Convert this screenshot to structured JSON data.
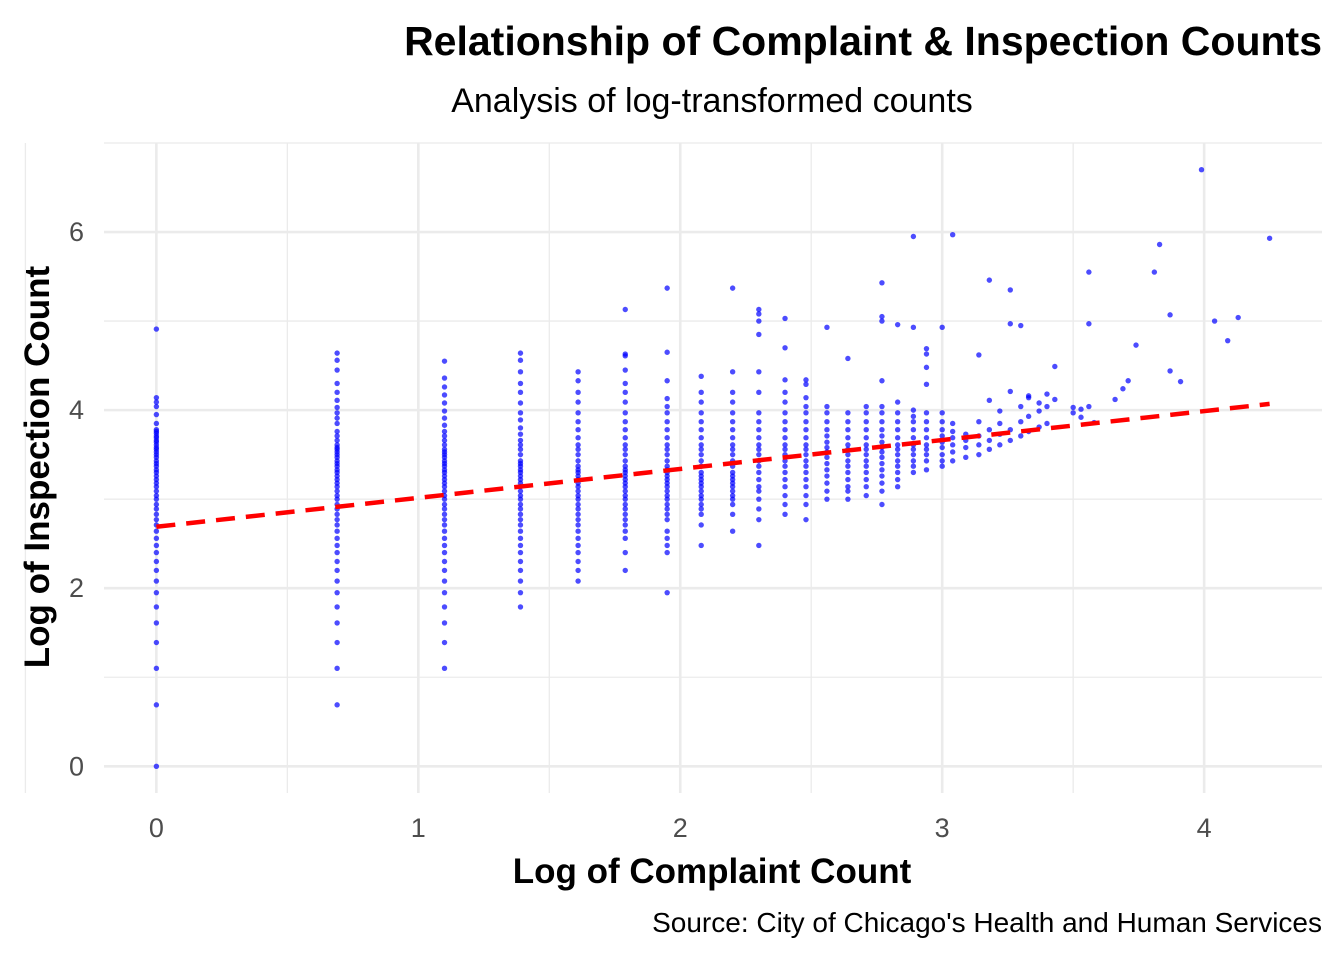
{
  "chart_data": {
    "type": "scatter",
    "title": "Relationship of Complaint & Inspection Counts",
    "subtitle": "Analysis of log-transformed counts",
    "xlabel": "Log of Complaint Count",
    "ylabel": "Log of Inspection Count",
    "caption": "Source: City of Chicago's Health and Human Services",
    "xlim": [
      -0.2,
      4.45
    ],
    "ylim": [
      -0.3,
      7.0
    ],
    "x_ticks": [
      0,
      1,
      2,
      3,
      4
    ],
    "y_ticks": [
      0,
      2,
      4,
      6
    ],
    "grid": true,
    "point_color": "#0000ff",
    "trend_color": "#ff0000",
    "trend_line": {
      "x": [
        0,
        4.25
      ],
      "y": [
        2.69,
        4.07
      ]
    },
    "columns": [
      {
        "x": 0,
        "y": [
          0,
          0.69,
          1.1,
          1.39,
          1.61,
          1.79,
          1.95,
          2.08,
          2.2,
          2.3,
          2.4,
          2.48,
          2.56,
          2.64,
          2.71,
          2.77,
          2.83,
          2.89,
          2.94,
          3.0,
          3.04,
          3.09,
          3.14,
          3.18,
          3.22,
          3.26,
          3.3,
          3.33,
          3.37,
          3.4,
          3.43,
          3.47,
          3.5,
          3.53,
          3.56,
          3.58,
          3.61,
          3.64,
          3.66,
          3.69,
          3.71,
          3.74,
          3.76,
          3.78,
          3.85,
          3.95,
          4.04,
          4.09,
          4.14,
          4.91
        ]
      },
      {
        "x": 0.69,
        "y": [
          0.69,
          1.1,
          1.39,
          1.61,
          1.79,
          1.95,
          2.08,
          2.2,
          2.3,
          2.4,
          2.48,
          2.56,
          2.64,
          2.71,
          2.77,
          2.83,
          2.89,
          2.94,
          3.0,
          3.04,
          3.09,
          3.14,
          3.18,
          3.22,
          3.26,
          3.3,
          3.33,
          3.37,
          3.4,
          3.43,
          3.47,
          3.5,
          3.53,
          3.56,
          3.58,
          3.61,
          3.66,
          3.71,
          3.76,
          3.85,
          3.91,
          3.97,
          4.03,
          4.11,
          4.2,
          4.3,
          4.45,
          4.56,
          4.64
        ]
      },
      {
        "x": 1.1,
        "y": [
          1.1,
          1.39,
          1.61,
          1.79,
          1.95,
          2.08,
          2.2,
          2.3,
          2.4,
          2.48,
          2.56,
          2.64,
          2.71,
          2.77,
          2.83,
          2.89,
          2.94,
          3.0,
          3.04,
          3.09,
          3.14,
          3.18,
          3.22,
          3.26,
          3.3,
          3.33,
          3.37,
          3.4,
          3.43,
          3.47,
          3.5,
          3.53,
          3.56,
          3.61,
          3.66,
          3.71,
          3.76,
          3.83,
          3.91,
          3.99,
          4.08,
          4.17,
          4.26,
          4.36,
          4.55
        ]
      },
      {
        "x": 1.39,
        "y": [
          1.79,
          1.95,
          2.08,
          2.2,
          2.3,
          2.4,
          2.48,
          2.56,
          2.64,
          2.71,
          2.77,
          2.83,
          2.89,
          2.94,
          3.0,
          3.04,
          3.09,
          3.14,
          3.18,
          3.22,
          3.26,
          3.3,
          3.33,
          3.37,
          3.4,
          3.43,
          3.5,
          3.56,
          3.61,
          3.66,
          3.73,
          3.8,
          3.89,
          3.97,
          4.08,
          4.2,
          4.3,
          4.43,
          4.56,
          4.64
        ]
      },
      {
        "x": 1.61,
        "y": [
          2.08,
          2.2,
          2.3,
          2.4,
          2.48,
          2.56,
          2.64,
          2.71,
          2.77,
          2.83,
          2.89,
          2.94,
          3.0,
          3.04,
          3.09,
          3.14,
          3.18,
          3.22,
          3.26,
          3.3,
          3.33,
          3.37,
          3.43,
          3.5,
          3.56,
          3.61,
          3.69,
          3.78,
          3.87,
          3.97,
          4.09,
          4.2,
          4.33,
          4.43
        ]
      },
      {
        "x": 1.79,
        "y": [
          2.2,
          2.4,
          2.56,
          2.64,
          2.71,
          2.77,
          2.83,
          2.89,
          2.94,
          3.0,
          3.04,
          3.09,
          3.14,
          3.18,
          3.22,
          3.26,
          3.3,
          3.33,
          3.37,
          3.43,
          3.5,
          3.56,
          3.61,
          3.69,
          3.78,
          3.87,
          3.97,
          4.09,
          4.2,
          4.3,
          4.45,
          4.61,
          4.63,
          5.13
        ]
      },
      {
        "x": 1.95,
        "y": [
          1.95,
          2.4,
          2.48,
          2.56,
          2.64,
          2.77,
          2.83,
          2.89,
          2.94,
          3.0,
          3.04,
          3.09,
          3.14,
          3.18,
          3.22,
          3.26,
          3.3,
          3.33,
          3.37,
          3.43,
          3.5,
          3.56,
          3.61,
          3.69,
          3.78,
          3.87,
          3.97,
          4.04,
          4.13,
          4.33,
          4.65,
          5.37
        ]
      },
      {
        "x": 2.08,
        "y": [
          2.48,
          2.71,
          2.83,
          2.89,
          2.94,
          3.0,
          3.04,
          3.09,
          3.14,
          3.18,
          3.22,
          3.26,
          3.3,
          3.37,
          3.43,
          3.5,
          3.56,
          3.61,
          3.69,
          3.78,
          3.87,
          3.97,
          4.09,
          4.2,
          4.38
        ]
      },
      {
        "x": 2.2,
        "y": [
          2.64,
          2.83,
          2.94,
          3.0,
          3.04,
          3.09,
          3.14,
          3.18,
          3.22,
          3.26,
          3.3,
          3.37,
          3.43,
          3.5,
          3.56,
          3.61,
          3.69,
          3.78,
          3.87,
          3.97,
          4.09,
          4.2,
          4.43,
          5.37
        ]
      },
      {
        "x": 2.3,
        "y": [
          2.48,
          2.77,
          2.89,
          3.0,
          3.09,
          3.14,
          3.22,
          3.3,
          3.37,
          3.43,
          3.5,
          3.56,
          3.61,
          3.69,
          3.78,
          3.87,
          3.97,
          4.2,
          4.43,
          4.85,
          5.0,
          5.08,
          5.13
        ]
      },
      {
        "x": 2.4,
        "y": [
          2.83,
          2.94,
          3.04,
          3.14,
          3.22,
          3.3,
          3.37,
          3.43,
          3.5,
          3.56,
          3.61,
          3.69,
          3.78,
          3.87,
          3.97,
          4.09,
          4.2,
          4.34,
          4.7,
          5.03
        ]
      },
      {
        "x": 2.48,
        "y": [
          2.77,
          2.94,
          3.04,
          3.14,
          3.22,
          3.3,
          3.37,
          3.43,
          3.5,
          3.56,
          3.61,
          3.69,
          3.78,
          3.87,
          3.97,
          4.04,
          4.14,
          4.29,
          4.34
        ]
      },
      {
        "x": 2.56,
        "y": [
          3.0,
          3.09,
          3.18,
          3.26,
          3.33,
          3.4,
          3.47,
          3.53,
          3.58,
          3.64,
          3.71,
          3.78,
          3.87,
          3.97,
          4.04,
          4.93
        ]
      },
      {
        "x": 2.64,
        "y": [
          3.0,
          3.09,
          3.14,
          3.22,
          3.3,
          3.37,
          3.43,
          3.5,
          3.56,
          3.61,
          3.69,
          3.78,
          3.87,
          3.97,
          4.58
        ]
      },
      {
        "x": 2.71,
        "y": [
          3.04,
          3.14,
          3.22,
          3.3,
          3.37,
          3.43,
          3.5,
          3.56,
          3.61,
          3.69,
          3.78,
          3.87,
          3.97,
          4.04
        ]
      },
      {
        "x": 2.77,
        "y": [
          2.94,
          3.09,
          3.18,
          3.26,
          3.33,
          3.4,
          3.47,
          3.53,
          3.58,
          3.64,
          3.71,
          3.78,
          3.87,
          3.97,
          4.04,
          4.33,
          5.0,
          5.05,
          5.43
        ]
      },
      {
        "x": 2.83,
        "y": [
          3.14,
          3.22,
          3.3,
          3.37,
          3.43,
          3.5,
          3.56,
          3.61,
          3.69,
          3.78,
          3.87,
          3.97,
          4.09,
          4.96
        ]
      },
      {
        "x": 2.89,
        "y": [
          3.3,
          3.37,
          3.43,
          3.5,
          3.56,
          3.61,
          3.69,
          3.78,
          3.87,
          3.93,
          4.0,
          4.93,
          5.95
        ]
      },
      {
        "x": 2.94,
        "y": [
          3.33,
          3.43,
          3.5,
          3.56,
          3.61,
          3.69,
          3.78,
          3.87,
          3.97,
          4.29,
          4.48,
          4.63,
          4.69
        ]
      },
      {
        "x": 3.0,
        "y": [
          3.37,
          3.43,
          3.5,
          3.58,
          3.64,
          3.71,
          3.78,
          3.87,
          3.97,
          4.93
        ]
      },
      {
        "x": 3.04,
        "y": [
          3.43,
          3.53,
          3.61,
          3.69,
          3.76,
          3.85,
          5.97
        ]
      },
      {
        "x": 3.09,
        "y": [
          3.47,
          3.58,
          3.66,
          3.73
        ]
      },
      {
        "x": 3.14,
        "y": [
          3.5,
          3.61,
          3.71,
          3.87,
          4.62
        ]
      },
      {
        "x": 3.18,
        "y": [
          3.56,
          3.66,
          3.78,
          4.11,
          5.46
        ]
      },
      {
        "x": 3.22,
        "y": [
          3.61,
          3.73,
          3.85,
          3.99
        ]
      },
      {
        "x": 3.26,
        "y": [
          3.66,
          3.78,
          4.21,
          4.97,
          5.35
        ]
      },
      {
        "x": 3.3,
        "y": [
          3.71,
          3.87,
          4.04,
          4.95
        ]
      },
      {
        "x": 3.33,
        "y": [
          3.76,
          3.93,
          4.14,
          4.16
        ]
      },
      {
        "x": 3.37,
        "y": [
          3.81,
          3.99,
          4.08
        ]
      },
      {
        "x": 3.4,
        "y": [
          3.85,
          4.04,
          4.18
        ]
      },
      {
        "x": 3.43,
        "y": [
          4.12,
          4.49
        ]
      },
      {
        "x": 3.5,
        "y": [
          3.97,
          4.03
        ]
      },
      {
        "x": 3.53,
        "y": [
          3.92,
          4.01
        ]
      },
      {
        "x": 3.56,
        "y": [
          4.04,
          4.97,
          5.55
        ]
      },
      {
        "x": 3.58,
        "y": [
          3.86
        ]
      },
      {
        "x": 3.66,
        "y": [
          4.12
        ]
      },
      {
        "x": 3.69,
        "y": [
          4.24
        ]
      },
      {
        "x": 3.71,
        "y": [
          4.33
        ]
      },
      {
        "x": 3.74,
        "y": [
          4.73
        ]
      },
      {
        "x": 3.81,
        "y": [
          5.55
        ]
      },
      {
        "x": 3.83,
        "y": [
          5.86
        ]
      },
      {
        "x": 3.87,
        "y": [
          5.07,
          4.44
        ]
      },
      {
        "x": 3.91,
        "y": [
          4.32
        ]
      },
      {
        "x": 3.99,
        "y": [
          6.7
        ]
      },
      {
        "x": 4.04,
        "y": [
          5.0
        ]
      },
      {
        "x": 4.09,
        "y": [
          4.78
        ]
      },
      {
        "x": 4.13,
        "y": [
          5.04
        ]
      },
      {
        "x": 4.25,
        "y": [
          5.93
        ]
      }
    ]
  }
}
